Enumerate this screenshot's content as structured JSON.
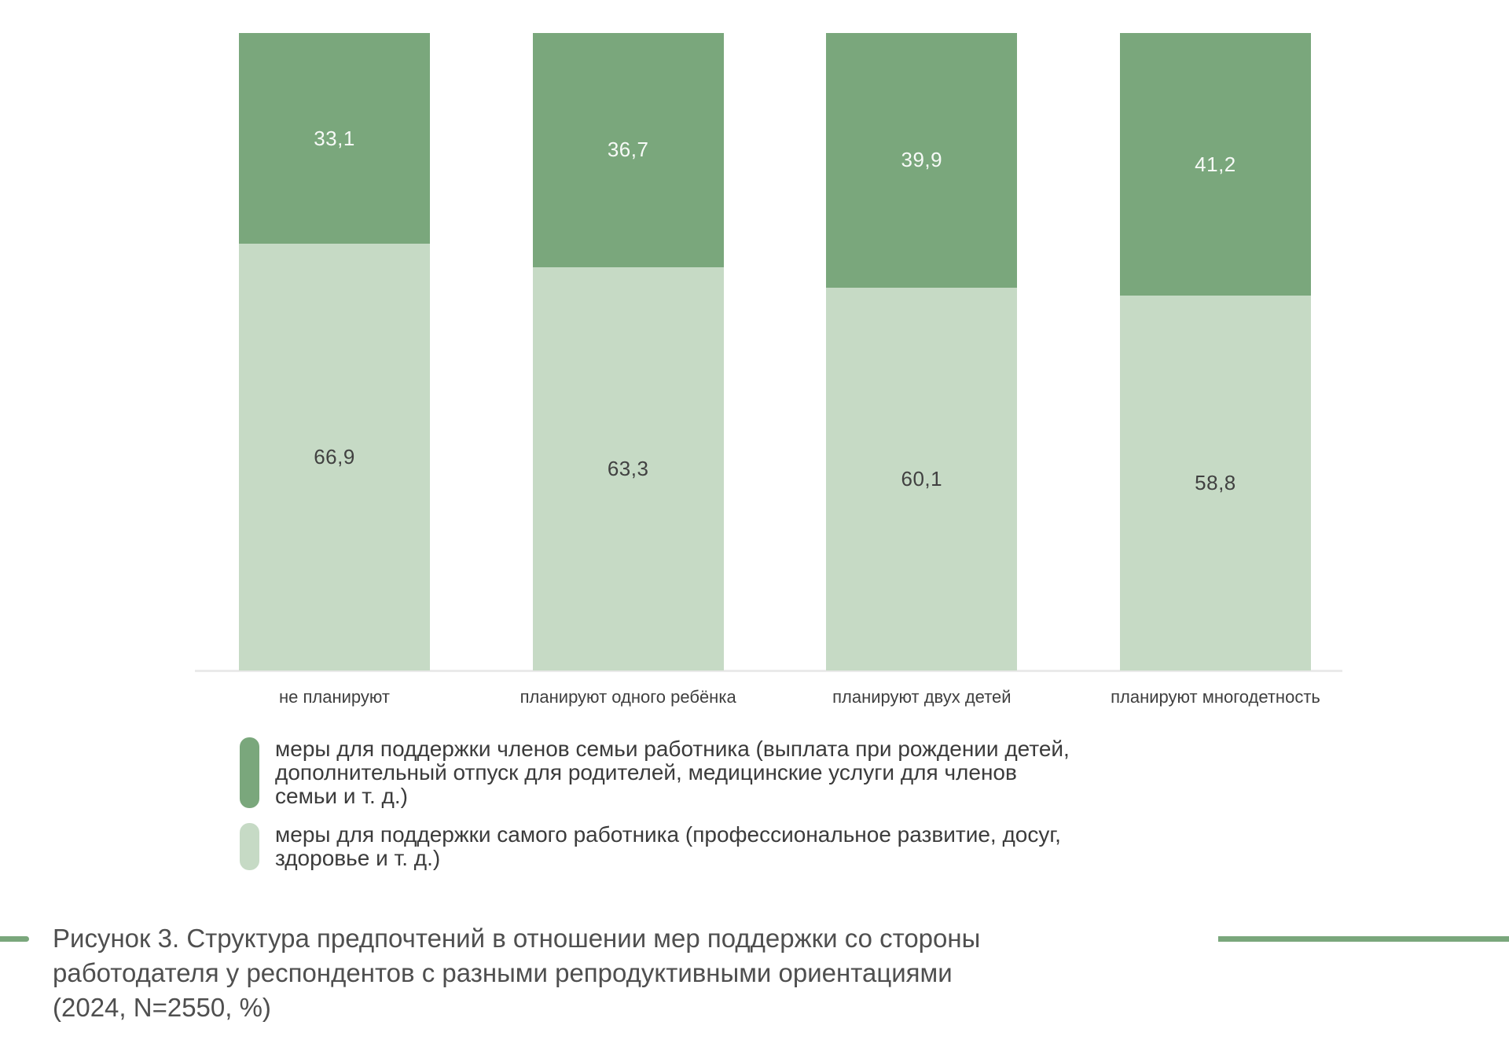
{
  "figure": {
    "background": "#ffffff",
    "color_family_measures": "#7aa77c",
    "color_worker_measures": "#c6dac5",
    "baseline_color": "#eaeaea",
    "accent_line_color": "#7aa77c"
  },
  "chart": {
    "bars": [
      {
        "category": "не планируют",
        "family_pct": 33.1,
        "family_label": "33,1",
        "worker_pct": 66.9,
        "worker_label": "66,9"
      },
      {
        "category": "планируют одного ребёнка",
        "family_pct": 36.7,
        "family_label": "36,7",
        "worker_pct": 63.3,
        "worker_label": "63,3"
      },
      {
        "category": "планируют двух детей",
        "family_pct": 39.9,
        "family_label": "39,9",
        "worker_pct": 60.1,
        "worker_label": "60,1"
      },
      {
        "category": "планируют многодетность",
        "family_pct": 41.2,
        "family_label": "41,2",
        "worker_pct": 58.8,
        "worker_label": "58,8"
      }
    ]
  },
  "legend": {
    "items": [
      {
        "key": "family-measures",
        "color": "#7aa77c",
        "lines": [
          "меры для поддержки членов семьи работника (выплата при рождении детей,",
          "дополнительный отпуск для родителей, медицинские услуги для членов",
          "семьи и т. д.)"
        ]
      },
      {
        "key": "worker-measures",
        "color": "#c6dac5",
        "lines": [
          "меры для поддержки самого работника (профессиональное развитие, досуг,",
          "здоровье и т. д.)"
        ]
      }
    ]
  },
  "caption": {
    "lines": [
      "Рисунок 3. Структура предпочтений в отношении мер поддержки со стороны",
      "работодателя у респондентов с разными репродуктивными ориентациями",
      "(2024, N=2550, %)"
    ]
  },
  "chart_data": {
    "type": "bar",
    "stacked": true,
    "orientation": "vertical",
    "unit": "%",
    "ylim": [
      0,
      100
    ],
    "grid": false,
    "value_labels": true,
    "decimal_separator": ",",
    "legend_position": "bottom-left",
    "categories": [
      "не планируют",
      "планируют одного ребёнка",
      "планируют двух детей",
      "планируют многодетность"
    ],
    "series": [
      {
        "name": "меры для поддержки членов семьи работника (выплата при рождении детей, дополнительный отпуск для родителей, медицинские услуги для членов семьи и т. д.)",
        "values": [
          33.1,
          36.7,
          39.9,
          41.2
        ],
        "color": "#7aa77c",
        "position": "top"
      },
      {
        "name": "меры для поддержки самого работника (профессиональное развитие, досуг, здоровье и т. д.)",
        "values": [
          66.9,
          63.3,
          60.1,
          58.8
        ],
        "color": "#c6dac5",
        "position": "bottom"
      }
    ],
    "title": "Рисунок 3. Структура предпочтений в отношении мер поддержки со стороны работодателя у респондентов с разными репродуктивными ориентациями (2024, N=2550, %)"
  }
}
